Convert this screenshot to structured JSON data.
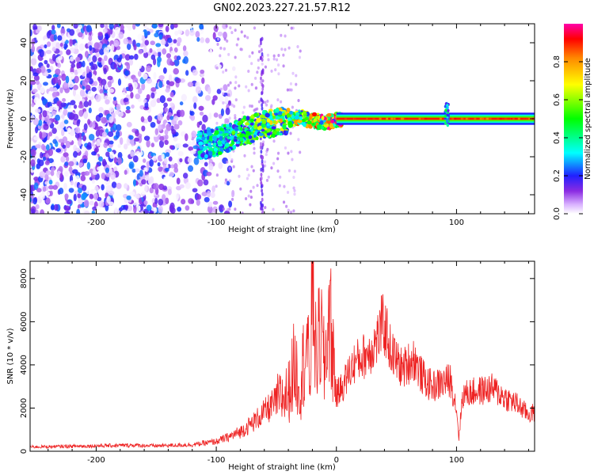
{
  "title": "GN02.2023.227.21.57.R12",
  "chart_data": [
    {
      "type": "heatmap",
      "xlabel": "Height of straight line (km)",
      "ylabel": "Frequency (Hz)",
      "xlim": [
        -255,
        165
      ],
      "ylim": [
        -50,
        50
      ],
      "x_ticks": [
        -200,
        -100,
        0,
        100
      ],
      "y_ticks": [
        -40,
        -20,
        0,
        20,
        40
      ],
      "colorbar": {
        "label": "Normalized spectral amplitude",
        "range": [
          0,
          1
        ],
        "ticks": [
          0.0,
          0.2,
          0.4,
          0.6,
          0.8
        ]
      },
      "features": {
        "noise_region_x": [
          -255,
          -100
        ],
        "trace_points": [
          {
            "x": -110,
            "y": -14
          },
          {
            "x": -100,
            "y": -12
          },
          {
            "x": -90,
            "y": -10
          },
          {
            "x": -80,
            "y": -7
          },
          {
            "x": -70,
            "y": -5
          },
          {
            "x": -60,
            "y": -3
          },
          {
            "x": -50,
            "y": -2
          },
          {
            "x": -40,
            "y": -0.5
          },
          {
            "x": -30,
            "y": 0.5
          },
          {
            "x": -20,
            "y": -1
          },
          {
            "x": -10,
            "y": -2
          },
          {
            "x": 0,
            "y": -0.5
          },
          {
            "x": 20,
            "y": 0
          },
          {
            "x": 90,
            "y": 0
          },
          {
            "x": 165,
            "y": 0
          }
        ],
        "steady_band_x": [
          0,
          165
        ],
        "spike_x": 92
      }
    },
    {
      "type": "line",
      "xlabel": "Height of straight line (km)",
      "ylabel": "SNR (10 * v/v)",
      "xlim": [
        -255,
        165
      ],
      "ylim": [
        0,
        8800
      ],
      "x_ticks": [
        -200,
        -100,
        0,
        100
      ],
      "y_ticks": [
        0,
        2000,
        4000,
        6000,
        8000
      ],
      "series": [
        {
          "color": "#ee2222",
          "points": [
            [
              -255,
              200
            ],
            [
              -230,
              220
            ],
            [
              -200,
              250
            ],
            [
              -170,
              280
            ],
            [
              -150,
              250
            ],
            [
              -120,
              300
            ],
            [
              -100,
              450
            ],
            [
              -90,
              650
            ],
            [
              -80,
              900
            ],
            [
              -70,
              1300
            ],
            [
              -60,
              1800
            ],
            [
              -50,
              2300
            ],
            [
              -40,
              2700
            ],
            [
              -35,
              4000
            ],
            [
              -30,
              3000
            ],
            [
              -25,
              5200
            ],
            [
              -22,
              3200
            ],
            [
              -20,
              8700
            ],
            [
              -17,
              4200
            ],
            [
              -13,
              5600
            ],
            [
              -10,
              3800
            ],
            [
              -6,
              6500
            ],
            [
              -2,
              4000
            ],
            [
              0,
              2600
            ],
            [
              5,
              3000
            ],
            [
              10,
              3600
            ],
            [
              15,
              4100
            ],
            [
              20,
              4300
            ],
            [
              25,
              4500
            ],
            [
              30,
              4800
            ],
            [
              35,
              5300
            ],
            [
              38,
              5900
            ],
            [
              42,
              5500
            ],
            [
              45,
              4700
            ],
            [
              50,
              4200
            ],
            [
              55,
              3800
            ],
            [
              60,
              4100
            ],
            [
              65,
              4300
            ],
            [
              70,
              3600
            ],
            [
              75,
              3200
            ],
            [
              80,
              3000
            ],
            [
              85,
              3100
            ],
            [
              90,
              3200
            ],
            [
              95,
              3300
            ],
            [
              100,
              2000
            ],
            [
              102,
              600
            ],
            [
              105,
              2600
            ],
            [
              110,
              2700
            ],
            [
              120,
              2800
            ],
            [
              130,
              2900
            ],
            [
              140,
              2500
            ],
            [
              150,
              2200
            ],
            [
              160,
              1700
            ],
            [
              165,
              1800
            ]
          ]
        }
      ]
    }
  ]
}
